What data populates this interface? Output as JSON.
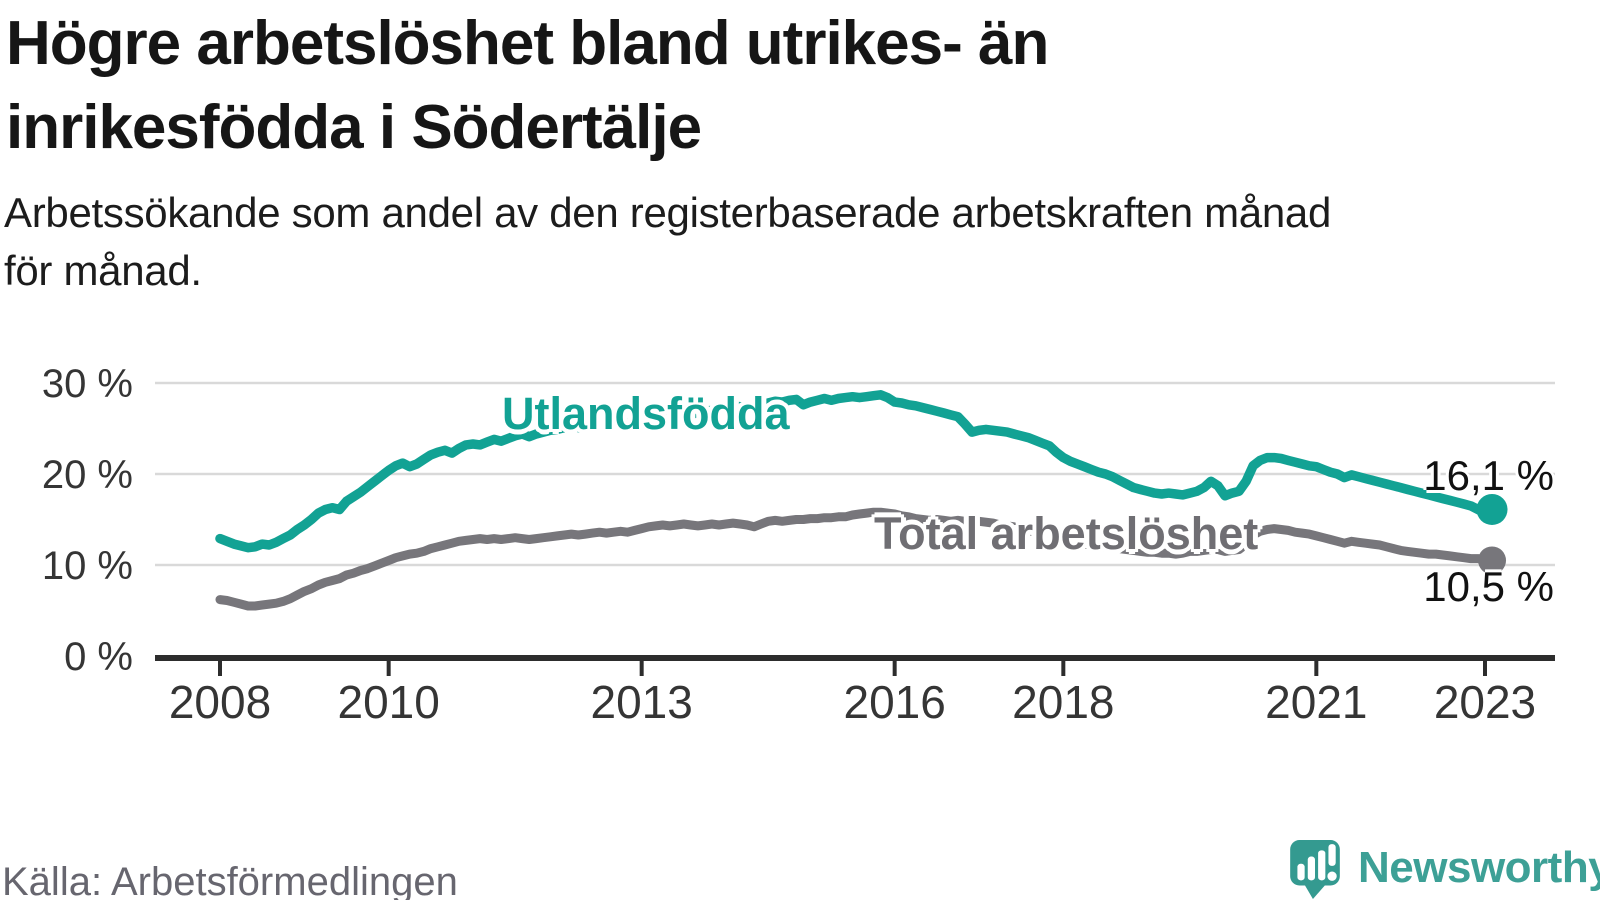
{
  "header": {
    "title_line1": "Högre arbetslöshet bland utrikes- än",
    "title_line2": "inrikesfödda i Södertälje",
    "subtitle_line1": "Arbetssökande som andel av den registerbaserade arbetskraften månad",
    "subtitle_line2": "för månad."
  },
  "footer": {
    "source": "Källa: Arbetsförmedlingen",
    "brand": "Newsworthy"
  },
  "colors": {
    "teal": "#12a294",
    "gray": "#77767b",
    "grid": "#d9d9d9",
    "axis": "#2d2d2d",
    "tick_text": "#353535",
    "value_text": "#111111",
    "logo_bubble": "#349a90",
    "logo_text": "#3da096"
  },
  "chart_data": {
    "type": "line",
    "title": "Högre arbetslöshet bland utrikes- än inrikesfödda i Södertälje",
    "subtitle": "Arbetssökande som andel av den registerbaserade arbetskraften månad för månad.",
    "x_unit": "month",
    "x_start": "2008-01",
    "x_end": "2023-02",
    "x_tick_years": [
      2008,
      2010,
      2013,
      2016,
      2018,
      2021,
      2023
    ],
    "y_ticks": [
      {
        "value": 30,
        "label": "30 %"
      },
      {
        "value": 20,
        "label": "20 %"
      },
      {
        "value": 10,
        "label": "10 %"
      },
      {
        "value": 0,
        "label": "0 %"
      }
    ],
    "ylim": [
      0,
      30
    ],
    "grid": "horizontal",
    "legend_position": "inline-labels",
    "series": [
      {
        "name": "Utlandsfödda",
        "color": "#12a294",
        "end_label": "16,1 %",
        "latest_value": 16.1,
        "values": [
          12.9,
          12.6,
          12.3,
          12.1,
          11.9,
          12.0,
          12.3,
          12.2,
          12.5,
          12.9,
          13.3,
          13.9,
          14.4,
          15.0,
          15.7,
          16.1,
          16.3,
          16.1,
          17.0,
          17.5,
          18.0,
          18.6,
          19.2,
          19.8,
          20.4,
          20.9,
          21.2,
          20.8,
          21.1,
          21.6,
          22.1,
          22.4,
          22.6,
          22.3,
          22.8,
          23.2,
          23.3,
          23.2,
          23.5,
          23.8,
          23.6,
          23.9,
          24.2,
          24.4,
          24.1,
          24.4,
          24.6,
          24.8,
          24.9,
          25.1,
          25.4,
          25.1,
          25.3,
          25.6,
          25.8,
          25.5,
          25.7,
          25.9,
          25.6,
          25.9,
          26.1,
          26.3,
          26.4,
          26.2,
          26.4,
          26.6,
          26.8,
          26.6,
          26.7,
          26.9,
          27.0,
          27.2,
          27.3,
          27.5,
          27.4,
          27.2,
          27.1,
          27.4,
          27.8,
          28.0,
          27.9,
          28.1,
          28.2,
          27.6,
          27.9,
          28.1,
          28.3,
          28.1,
          28.3,
          28.4,
          28.5,
          28.4,
          28.5,
          28.6,
          28.7,
          28.4,
          27.9,
          27.8,
          27.6,
          27.5,
          27.3,
          27.1,
          26.9,
          26.7,
          26.5,
          26.3,
          25.5,
          24.6,
          24.8,
          24.9,
          24.8,
          24.7,
          24.6,
          24.4,
          24.2,
          24.0,
          23.7,
          23.4,
          23.1,
          22.4,
          21.8,
          21.4,
          21.1,
          20.8,
          20.5,
          20.2,
          20.0,
          19.7,
          19.3,
          18.9,
          18.5,
          18.3,
          18.1,
          17.9,
          17.8,
          17.9,
          17.8,
          17.7,
          17.9,
          18.1,
          18.5,
          19.2,
          18.7,
          17.6,
          17.9,
          18.1,
          19.2,
          20.9,
          21.5,
          21.8,
          21.8,
          21.7,
          21.5,
          21.3,
          21.1,
          20.9,
          20.8,
          20.5,
          20.2,
          20.0,
          19.6,
          19.9,
          19.7,
          19.5,
          19.3,
          19.1,
          18.9,
          18.7,
          18.5,
          18.3,
          18.1,
          17.9,
          17.7,
          17.5,
          17.3,
          17.1,
          16.9,
          16.7,
          16.5,
          16.1,
          15.7,
          16.1
        ]
      },
      {
        "name": "Total arbetslöshet",
        "color": "#77767b",
        "end_label": "10,5 %",
        "latest_value": 10.5,
        "values": [
          6.2,
          6.1,
          5.9,
          5.7,
          5.5,
          5.5,
          5.6,
          5.7,
          5.8,
          6.0,
          6.3,
          6.7,
          7.1,
          7.4,
          7.8,
          8.1,
          8.3,
          8.5,
          8.9,
          9.1,
          9.4,
          9.6,
          9.9,
          10.2,
          10.5,
          10.8,
          11.0,
          11.2,
          11.3,
          11.5,
          11.8,
          12.0,
          12.2,
          12.4,
          12.6,
          12.7,
          12.8,
          12.9,
          12.8,
          12.9,
          12.8,
          12.9,
          13.0,
          12.9,
          12.8,
          12.9,
          13.0,
          13.1,
          13.2,
          13.3,
          13.4,
          13.3,
          13.4,
          13.5,
          13.6,
          13.5,
          13.6,
          13.7,
          13.6,
          13.8,
          14.0,
          14.2,
          14.3,
          14.4,
          14.3,
          14.4,
          14.5,
          14.4,
          14.3,
          14.4,
          14.5,
          14.4,
          14.5,
          14.6,
          14.5,
          14.4,
          14.2,
          14.5,
          14.8,
          14.9,
          14.8,
          14.9,
          15.0,
          15.0,
          15.1,
          15.1,
          15.2,
          15.2,
          15.3,
          15.3,
          15.5,
          15.6,
          15.7,
          15.8,
          15.8,
          15.7,
          15.6,
          15.4,
          15.3,
          15.1,
          15.0,
          14.9,
          15.0,
          14.9,
          14.8,
          14.9,
          14.8,
          14.9,
          14.8,
          14.7,
          14.6,
          14.4,
          14.3,
          14.2,
          14.0,
          13.8,
          13.6,
          13.3,
          13.1,
          12.9,
          12.7,
          12.5,
          12.4,
          12.3,
          12.2,
          12.1,
          12.0,
          11.9,
          11.8,
          11.7,
          11.6,
          11.5,
          11.4,
          11.4,
          11.3,
          11.3,
          11.2,
          11.3,
          11.5,
          11.5,
          11.6,
          11.7,
          11.7,
          11.5,
          11.6,
          11.7,
          12.3,
          13.3,
          13.7,
          13.9,
          14.0,
          13.9,
          13.8,
          13.6,
          13.5,
          13.4,
          13.2,
          13.0,
          12.8,
          12.6,
          12.4,
          12.6,
          12.5,
          12.4,
          12.3,
          12.2,
          12.0,
          11.8,
          11.6,
          11.5,
          11.4,
          11.3,
          11.2,
          11.2,
          11.1,
          11.0,
          10.9,
          10.8,
          10.7,
          10.7,
          10.6,
          10.5
        ]
      }
    ]
  }
}
